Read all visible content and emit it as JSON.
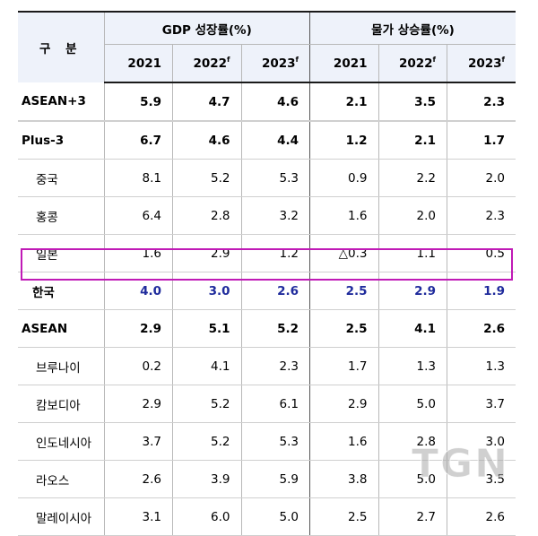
{
  "header": {
    "stub_label": "구 분",
    "gdp_group": "GDP 성장률(%)",
    "cpi_group": "물가 상승률(%)",
    "years": [
      {
        "year": "2021",
        "sup": ""
      },
      {
        "year": "2022",
        "sup": "f"
      },
      {
        "year": "2023",
        "sup": "f"
      }
    ]
  },
  "rows": [
    {
      "name": "ASEAN+3",
      "gdp": [
        "5.9",
        "4.7",
        "4.6"
      ],
      "cpi": [
        "2.1",
        "3.5",
        "2.3"
      ]
    },
    {
      "name": "Plus-3",
      "gdp": [
        "6.7",
        "4.6",
        "4.4"
      ],
      "cpi": [
        "1.2",
        "2.1",
        "1.7"
      ]
    },
    {
      "name": "중국",
      "gdp": [
        "8.1",
        "5.2",
        "5.3"
      ],
      "cpi": [
        "0.9",
        "2.2",
        "2.0"
      ]
    },
    {
      "name": "홍콩",
      "gdp": [
        "6.4",
        "2.8",
        "3.2"
      ],
      "cpi": [
        "1.6",
        "2.0",
        "2.3"
      ]
    },
    {
      "name": "일본",
      "gdp": [
        "1.6",
        "2.9",
        "1.2"
      ],
      "cpi": [
        "△0.3",
        "1.1",
        "0.5"
      ]
    },
    {
      "name": "한국",
      "gdp": [
        "4.0",
        "3.0",
        "2.6"
      ],
      "cpi": [
        "2.5",
        "2.9",
        "1.9"
      ]
    },
    {
      "name": "ASEAN",
      "gdp": [
        "2.9",
        "5.1",
        "5.2"
      ],
      "cpi": [
        "2.5",
        "4.1",
        "2.6"
      ]
    },
    {
      "name": "브루나이",
      "gdp": [
        "0.2",
        "4.1",
        "2.3"
      ],
      "cpi": [
        "1.7",
        "1.3",
        "1.3"
      ]
    },
    {
      "name": "캄보디아",
      "gdp": [
        "2.9",
        "5.2",
        "6.1"
      ],
      "cpi": [
        "2.9",
        "5.0",
        "3.7"
      ]
    },
    {
      "name": "인도네시아",
      "gdp": [
        "3.7",
        "5.2",
        "5.3"
      ],
      "cpi": [
        "1.6",
        "2.8",
        "3.0"
      ]
    },
    {
      "name": "라오스",
      "gdp": [
        "2.6",
        "3.9",
        "5.9"
      ],
      "cpi": [
        "3.8",
        "5.0",
        "3.5"
      ]
    },
    {
      "name": "말레이시아",
      "gdp": [
        "3.1",
        "6.0",
        "5.0"
      ],
      "cpi": [
        "2.5",
        "2.7",
        "2.6"
      ]
    }
  ],
  "highlight_color": "#c01ab6",
  "korea_value_color": "#1f2b9c",
  "watermark": "TGN"
}
